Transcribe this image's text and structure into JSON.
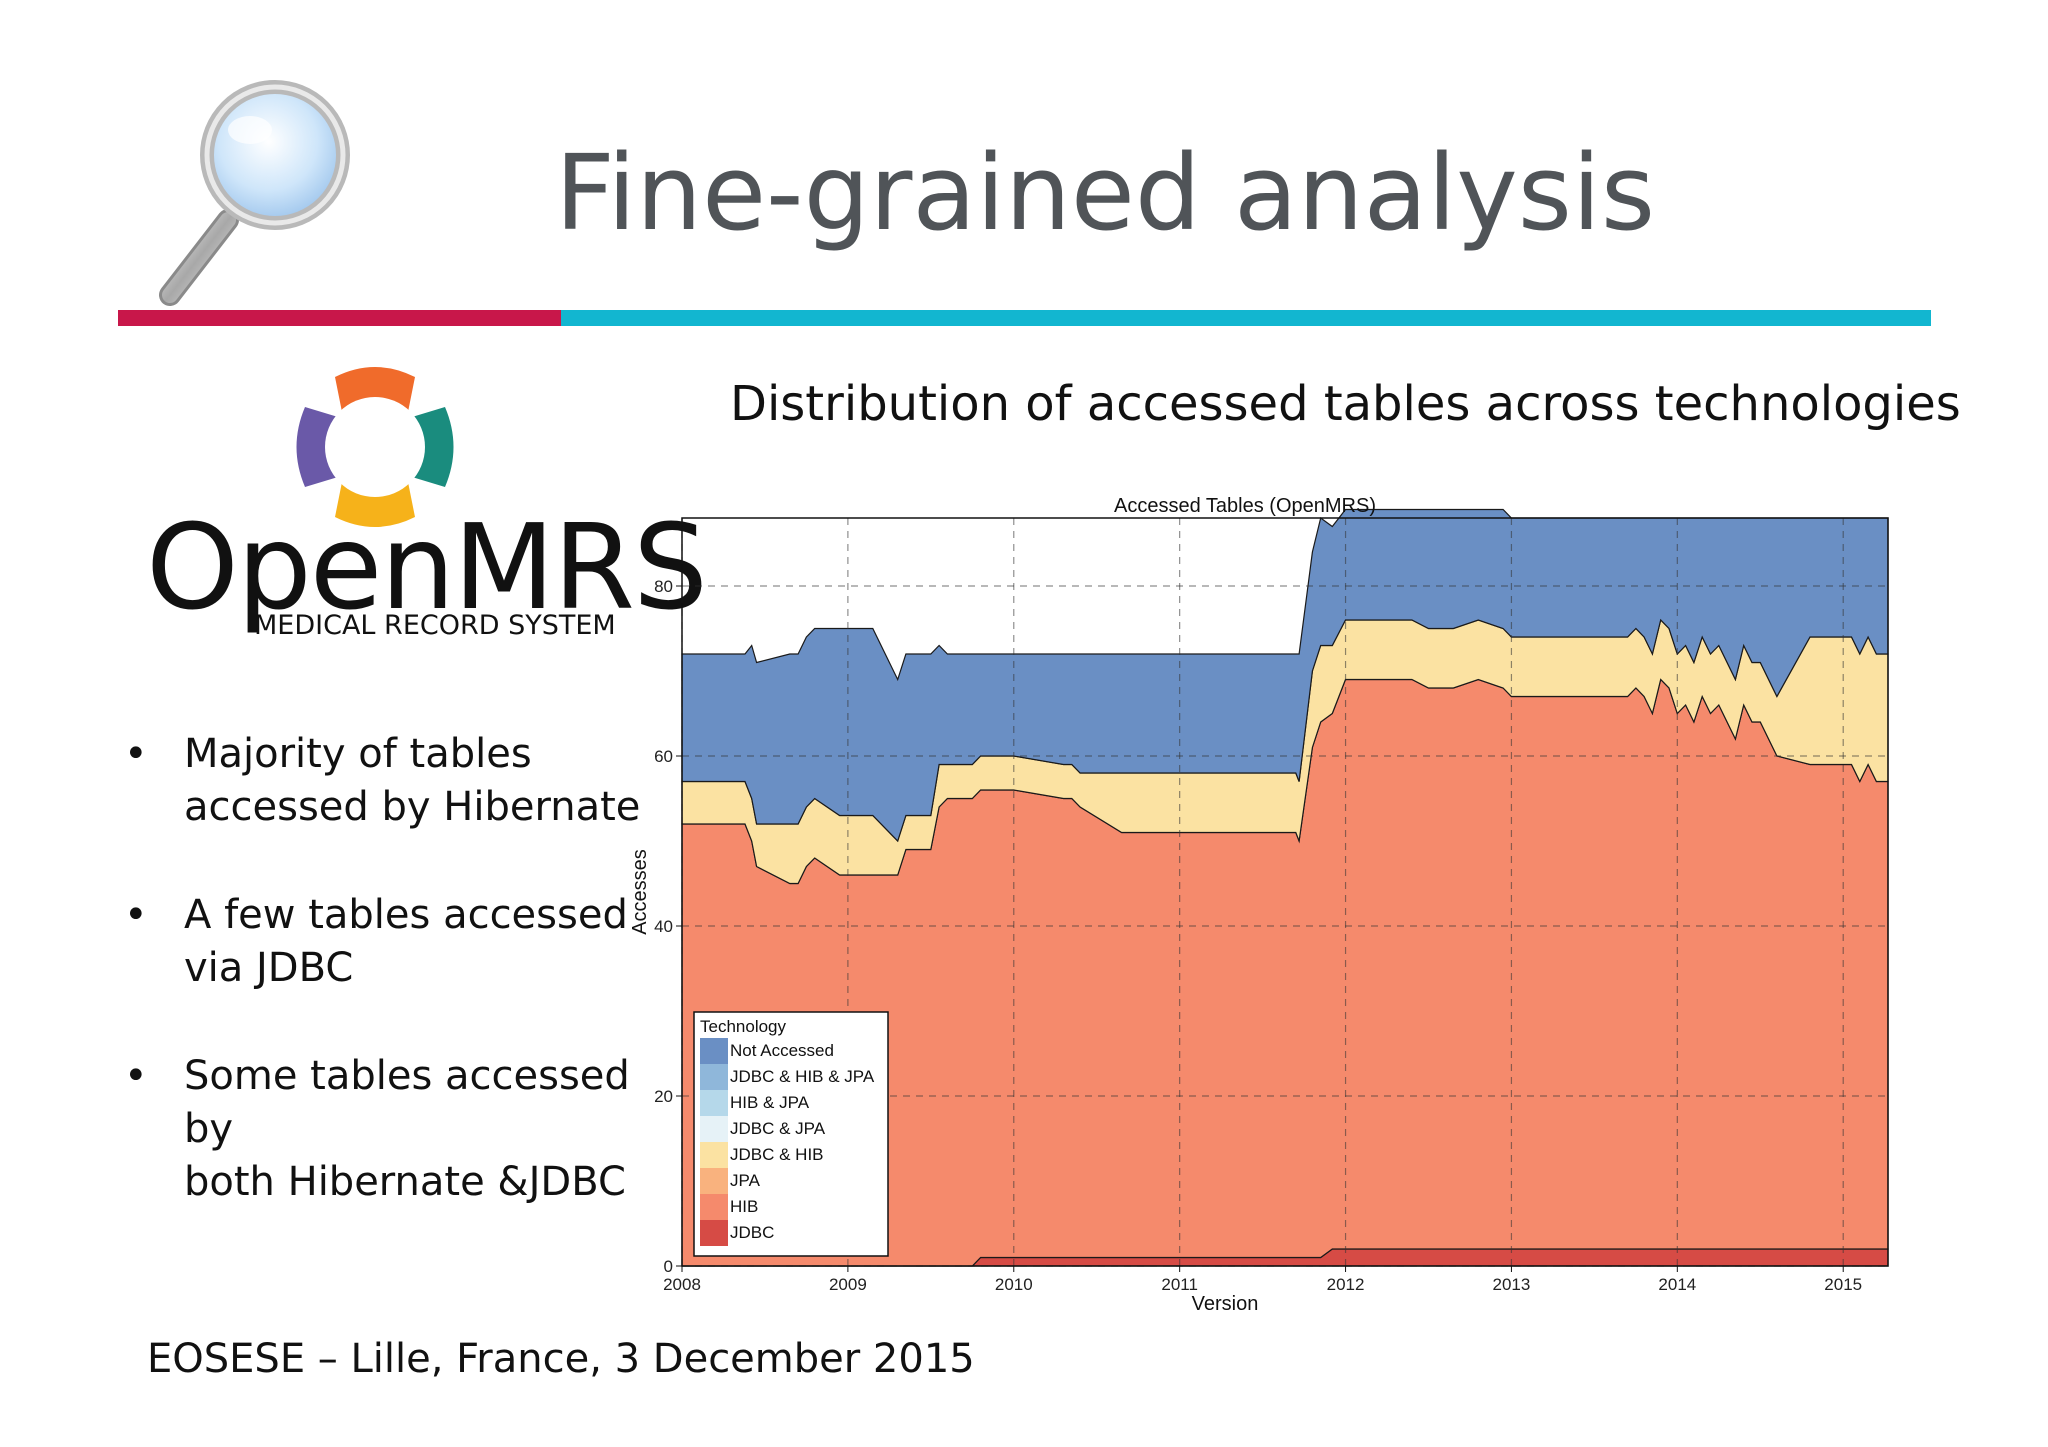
{
  "slide": {
    "title": "Fine-grained analysis",
    "subtitle": "Distribution of accessed tables across technologies",
    "footer": "EOSESE – Lille, France,  3 December 2015",
    "logo": {
      "name": "OpenMRS",
      "tagline": "MEDICAL RECORD SYSTEM"
    },
    "bullets": [
      "Majority of tables accessed by Hibernate",
      "A few tables accessed via JDBC",
      "Some tables accessed by both Hibernate &JDBC"
    ],
    "bullet_lines": [
      [
        "Majority of tables",
        "accessed by Hibernate"
      ],
      [
        "A few tables accessed",
        "via JDBC"
      ],
      [
        "Some tables accessed by",
        "both Hibernate &JDBC"
      ]
    ],
    "bullet_symbol": "•",
    "colors": {
      "title_bar_red": "#c8174a",
      "title_bar_cyan": "#12b6d0"
    }
  },
  "chart_data": {
    "type": "area",
    "stacked": true,
    "title": "Accessed Tables (OpenMRS)",
    "xlabel": "Version",
    "ylabel": "Accesses",
    "xlim": [
      2008.0,
      2015.27
    ],
    "ylim": [
      0,
      88
    ],
    "xticks": [
      "2008",
      "2009",
      "2010",
      "2011",
      "2012",
      "2013",
      "2014",
      "2015"
    ],
    "yticks": [
      "0",
      "20",
      "40",
      "60",
      "80"
    ],
    "grid": true,
    "legend": {
      "title": "Technology",
      "placement": "bottom-left",
      "entries": [
        {
          "name": "Not Accessed",
          "color": "#6a8fc4"
        },
        {
          "name": "JDBC & HIB & JPA",
          "color": "#8fb7da"
        },
        {
          "name": "HIB & JPA",
          "color": "#b5d8ea"
        },
        {
          "name": "JDBC & JPA",
          "color": "#e6f2f7"
        },
        {
          "name": "JDBC & HIB",
          "color": "#fbe2a2"
        },
        {
          "name": "JPA",
          "color": "#f9b27e"
        },
        {
          "name": "HIB",
          "color": "#f58a6c"
        },
        {
          "name": "JDBC",
          "color": "#d64b45"
        }
      ]
    },
    "x": [
      2008.0,
      2008.38,
      2008.42,
      2008.45,
      2008.65,
      2008.7,
      2008.75,
      2008.8,
      2008.95,
      2009.0,
      2009.15,
      2009.3,
      2009.35,
      2009.5,
      2009.55,
      2009.6,
      2009.75,
      2009.8,
      2010.0,
      2010.3,
      2010.35,
      2010.4,
      2010.65,
      2010.7,
      2010.75,
      2011.0,
      2011.68,
      2011.7,
      2011.72,
      2011.8,
      2011.85,
      2011.92,
      2012.0,
      2012.2,
      2012.3,
      2012.4,
      2012.5,
      2012.6,
      2012.65,
      2012.8,
      2012.95,
      2013.0,
      2013.1,
      2013.2,
      2013.3,
      2013.5,
      2013.7,
      2013.75,
      2013.8,
      2013.85,
      2013.9,
      2013.95,
      2014.0,
      2014.05,
      2014.1,
      2014.15,
      2014.2,
      2014.25,
      2014.3,
      2014.35,
      2014.4,
      2014.45,
      2014.5,
      2014.55,
      2014.6,
      2014.8,
      2015.0,
      2015.05,
      2015.1,
      2015.15,
      2015.2,
      2015.27
    ],
    "series": [
      {
        "name": "JDBC",
        "values": [
          0,
          0,
          0,
          0,
          0,
          0,
          0,
          0,
          0,
          0,
          0,
          0,
          0,
          0,
          0,
          0,
          0,
          1,
          1,
          1,
          1,
          1,
          1,
          1,
          1,
          1,
          1,
          1,
          1,
          1,
          1,
          2,
          2,
          2,
          2,
          2,
          2,
          2,
          2,
          2,
          2,
          2,
          2,
          2,
          2,
          2,
          2,
          2,
          2,
          2,
          2,
          2,
          2,
          2,
          2,
          2,
          2,
          2,
          2,
          2,
          2,
          2,
          2,
          2,
          2,
          2,
          2,
          2,
          2,
          2,
          2,
          2
        ]
      },
      {
        "name": "HIB",
        "values": [
          52,
          52,
          50,
          47,
          45,
          45,
          47,
          48,
          46,
          46,
          46,
          46,
          49,
          49,
          54,
          55,
          55,
          55,
          55,
          54,
          54,
          53,
          50,
          50,
          50,
          50,
          50,
          50,
          49,
          60,
          63,
          63,
          67,
          67,
          67,
          67,
          66,
          66,
          66,
          67,
          66,
          65,
          65,
          65,
          65,
          65,
          65,
          66,
          65,
          63,
          67,
          66,
          63,
          64,
          62,
          65,
          63,
          64,
          62,
          60,
          64,
          62,
          62,
          60,
          58,
          57,
          57,
          57,
          55,
          57,
          55,
          55
        ]
      },
      {
        "name": "JDBC & HIB",
        "values": [
          5,
          5,
          5,
          5,
          7,
          7,
          7,
          7,
          7,
          7,
          7,
          4,
          4,
          4,
          5,
          4,
          4,
          4,
          4,
          4,
          4,
          4,
          7,
          7,
          7,
          7,
          7,
          7,
          7,
          9,
          9,
          8,
          7,
          7,
          7,
          7,
          7,
          7,
          7,
          7,
          7,
          7,
          7,
          7,
          7,
          7,
          7,
          7,
          7,
          7,
          7,
          7,
          7,
          7,
          7,
          7,
          7,
          7,
          7,
          7,
          7,
          7,
          7,
          7,
          7,
          15,
          15,
          15,
          15,
          15,
          15,
          15
        ]
      },
      {
        "name": "Not Accessed",
        "values": [
          15,
          15,
          18,
          19,
          20,
          20,
          20,
          20,
          22,
          22,
          22,
          19,
          19,
          19,
          14,
          13,
          13,
          12,
          12,
          13,
          13,
          14,
          14,
          14,
          14,
          14,
          14,
          14,
          15,
          14,
          15,
          14,
          13,
          13,
          13,
          13,
          14,
          14,
          14,
          13,
          14,
          14,
          14,
          14,
          14,
          14,
          14,
          13,
          14,
          16,
          12,
          13,
          16,
          15,
          17,
          14,
          16,
          15,
          17,
          19,
          15,
          17,
          17,
          19,
          21,
          14,
          14,
          14,
          16,
          14,
          16,
          16
        ]
      }
    ],
    "annotations": []
  }
}
